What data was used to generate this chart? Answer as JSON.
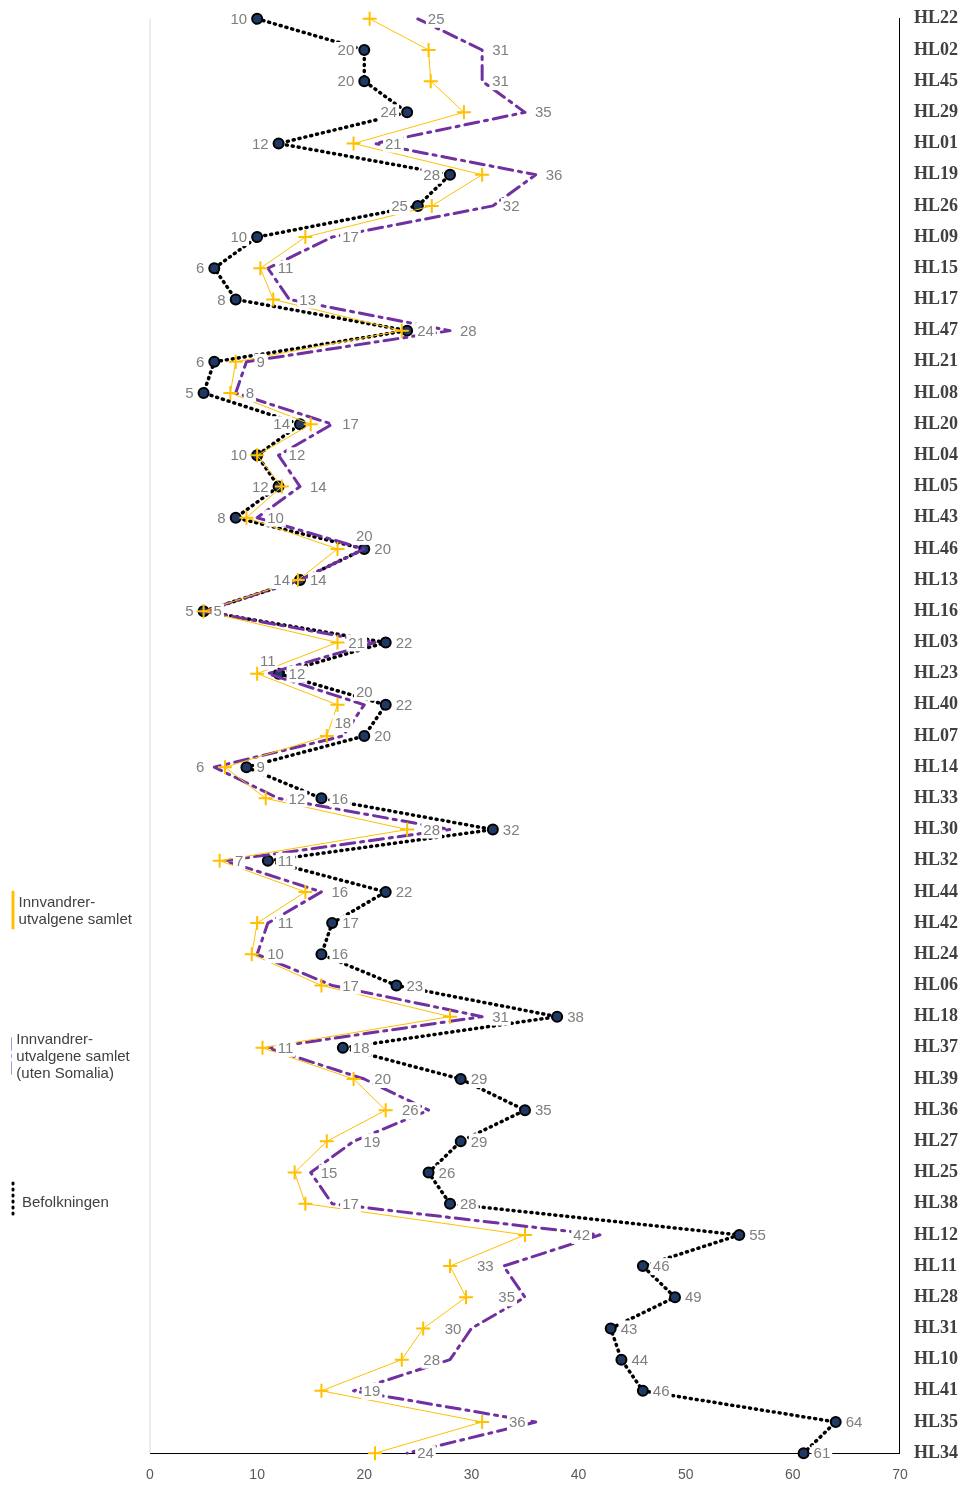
{
  "chart_data": {
    "type": "line",
    "orientation": "horizontal",
    "categories": [
      "HL22",
      "HL02",
      "HL45",
      "HL29",
      "HL01",
      "HL19",
      "HL26",
      "HL09",
      "HL15",
      "HL17",
      "HL47",
      "HL21",
      "HL08",
      "HL20",
      "HL04",
      "HL05",
      "HL43",
      "HL46",
      "HL13",
      "HL16",
      "HL03",
      "HL23",
      "HL40",
      "HL07",
      "HL14",
      "HL33",
      "HL30",
      "HL32",
      "HL44",
      "HL42",
      "HL24",
      "HL06",
      "HL18",
      "HL37",
      "HL39",
      "HL36",
      "HL27",
      "HL25",
      "HL38",
      "HL12",
      "HL11",
      "HL28",
      "HL31",
      "HL10",
      "HL41",
      "HL35",
      "HL34"
    ],
    "xlim": [
      0,
      70
    ],
    "xticks": [
      0,
      10,
      20,
      30,
      40,
      50,
      60,
      70
    ],
    "grid": false,
    "legend": "left",
    "series": [
      {
        "name": "Innvandrer-utvalgene samlet",
        "color": "#ffc000",
        "marker": "cross",
        "line_style": "solid",
        "values": [
          20.5,
          26,
          26.2,
          29.3,
          19,
          31,
          26.3,
          14.5,
          10.3,
          11.5,
          23.5,
          8,
          7.5,
          15,
          10,
          12.3,
          9,
          17.5,
          13.8,
          5,
          17.5,
          10,
          17.5,
          16.5,
          7,
          10.8,
          24,
          6.5,
          14.5,
          10,
          9.5,
          16,
          28,
          10.5,
          19,
          22,
          16.5,
          13.5,
          14.5,
          35,
          28,
          29.5,
          25.5,
          23.5,
          16,
          31,
          21
        ]
      },
      {
        "name": "Innvandrer-utvalgene samlet (uten Somalia)",
        "color": "#7030a0",
        "marker": "none",
        "line_style": "dashed",
        "values": [
          25,
          31,
          31,
          35,
          21,
          36,
          32,
          17,
          11,
          13,
          28,
          9,
          8,
          17,
          12,
          14,
          10,
          20,
          14,
          5,
          21,
          11,
          20,
          18,
          6,
          12,
          28,
          7,
          16,
          11,
          10,
          17,
          31,
          11,
          20,
          26,
          19,
          15,
          17,
          42,
          33,
          35,
          30,
          28,
          19,
          36,
          24
        ],
        "value_labels": [
          "25",
          "31",
          "31",
          "35",
          "21",
          "36",
          "32",
          "17",
          "11",
          "13",
          "28",
          "9",
          "8",
          "17",
          "12",
          "14",
          "10",
          "20",
          "14",
          "5",
          "21",
          "11",
          "20",
          "18",
          "6",
          "12",
          "28",
          "7",
          "16",
          "11",
          "10",
          "17",
          "31",
          "11",
          "20",
          "26",
          "19",
          "15",
          "17",
          "42",
          "33",
          "35",
          "30",
          "28",
          "19",
          "36",
          "24"
        ]
      },
      {
        "name": "Befolkningen",
        "color": "#000000",
        "marker": "circle",
        "line_style": "dotted",
        "values": [
          10,
          20,
          20,
          24,
          12,
          28,
          25,
          10,
          6,
          8,
          24,
          6,
          5,
          14,
          10,
          12,
          8,
          20,
          14,
          5,
          22,
          12,
          22,
          20,
          9,
          16,
          32,
          11,
          22,
          17,
          16,
          23,
          38,
          18,
          29,
          35,
          29,
          26,
          28,
          55,
          46,
          49,
          43,
          44,
          46,
          64,
          61
        ],
        "value_labels": [
          "10",
          "20",
          "20",
          "24",
          "12",
          "28",
          "25",
          "10",
          "6",
          "8",
          "24",
          "6",
          "5",
          "14",
          "10",
          "12",
          "8",
          "20",
          "14",
          "5",
          "22",
          "12",
          "22",
          "20",
          "9",
          "16",
          "32",
          "11",
          "22",
          "17",
          "16",
          "23",
          "38",
          "18",
          "29",
          "35",
          "29",
          "26",
          "28",
          "55",
          "46",
          "49",
          "43",
          "44",
          "46",
          "64",
          "61"
        ]
      }
    ]
  }
}
